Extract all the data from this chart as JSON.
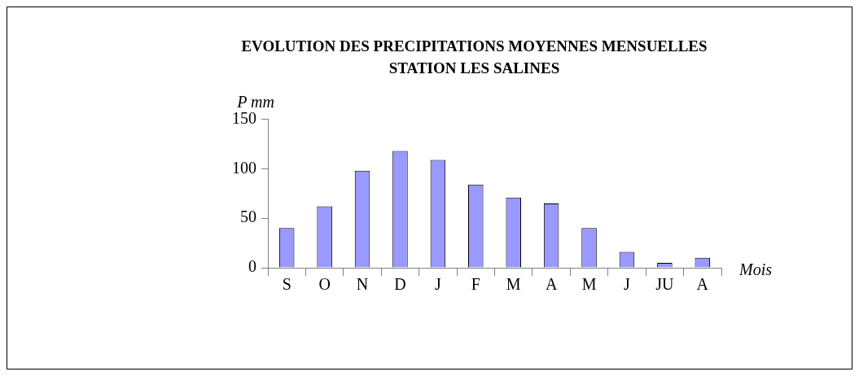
{
  "chart_data": {
    "type": "bar",
    "title": "EVOLUTION DES PRECIPITATIONS MOYENNES MENSUELLES",
    "subtitle": "STATION LES SALINES",
    "xlabel": "Mois",
    "ylabel": "P mm",
    "categories": [
      "S",
      "O",
      "N",
      "D",
      "J",
      "F",
      "M",
      "A",
      "M",
      "J",
      "JU",
      "A"
    ],
    "values": [
      40,
      62,
      98,
      118,
      109,
      84,
      71,
      65,
      40,
      16,
      5,
      10
    ],
    "color": "#9999ff",
    "ylim": [
      0,
      150
    ],
    "yticks": [
      0,
      50,
      100,
      150
    ]
  }
}
